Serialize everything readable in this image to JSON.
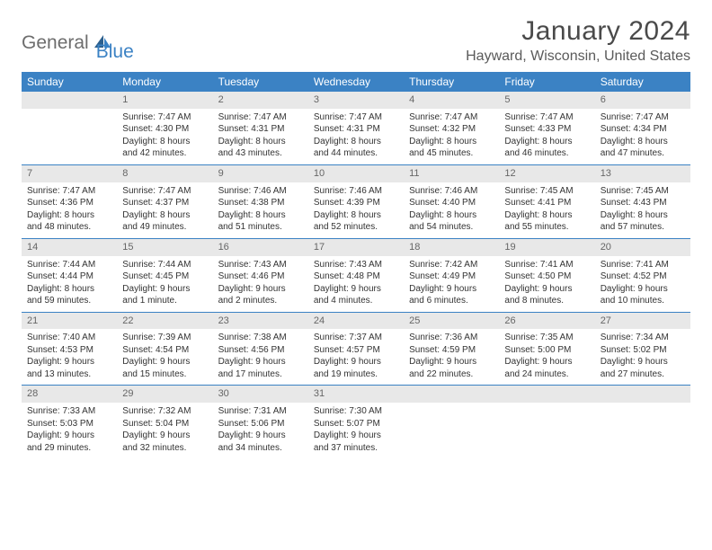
{
  "logo": {
    "text1": "General",
    "text2": "Blue"
  },
  "title": "January 2024",
  "location": "Hayward, Wisconsin, United States",
  "weekdays": [
    "Sunday",
    "Monday",
    "Tuesday",
    "Wednesday",
    "Thursday",
    "Friday",
    "Saturday"
  ],
  "colors": {
    "header_bg": "#3b82c4",
    "header_text": "#ffffff",
    "daynum_bg": "#e8e8e8",
    "week_border": "#3b82c4"
  },
  "weeks": [
    [
      null,
      {
        "n": "1",
        "sr": "Sunrise: 7:47 AM",
        "ss": "Sunset: 4:30 PM",
        "dl": "Daylight: 8 hours and 42 minutes."
      },
      {
        "n": "2",
        "sr": "Sunrise: 7:47 AM",
        "ss": "Sunset: 4:31 PM",
        "dl": "Daylight: 8 hours and 43 minutes."
      },
      {
        "n": "3",
        "sr": "Sunrise: 7:47 AM",
        "ss": "Sunset: 4:31 PM",
        "dl": "Daylight: 8 hours and 44 minutes."
      },
      {
        "n": "4",
        "sr": "Sunrise: 7:47 AM",
        "ss": "Sunset: 4:32 PM",
        "dl": "Daylight: 8 hours and 45 minutes."
      },
      {
        "n": "5",
        "sr": "Sunrise: 7:47 AM",
        "ss": "Sunset: 4:33 PM",
        "dl": "Daylight: 8 hours and 46 minutes."
      },
      {
        "n": "6",
        "sr": "Sunrise: 7:47 AM",
        "ss": "Sunset: 4:34 PM",
        "dl": "Daylight: 8 hours and 47 minutes."
      }
    ],
    [
      {
        "n": "7",
        "sr": "Sunrise: 7:47 AM",
        "ss": "Sunset: 4:36 PM",
        "dl": "Daylight: 8 hours and 48 minutes."
      },
      {
        "n": "8",
        "sr": "Sunrise: 7:47 AM",
        "ss": "Sunset: 4:37 PM",
        "dl": "Daylight: 8 hours and 49 minutes."
      },
      {
        "n": "9",
        "sr": "Sunrise: 7:46 AM",
        "ss": "Sunset: 4:38 PM",
        "dl": "Daylight: 8 hours and 51 minutes."
      },
      {
        "n": "10",
        "sr": "Sunrise: 7:46 AM",
        "ss": "Sunset: 4:39 PM",
        "dl": "Daylight: 8 hours and 52 minutes."
      },
      {
        "n": "11",
        "sr": "Sunrise: 7:46 AM",
        "ss": "Sunset: 4:40 PM",
        "dl": "Daylight: 8 hours and 54 minutes."
      },
      {
        "n": "12",
        "sr": "Sunrise: 7:45 AM",
        "ss": "Sunset: 4:41 PM",
        "dl": "Daylight: 8 hours and 55 minutes."
      },
      {
        "n": "13",
        "sr": "Sunrise: 7:45 AM",
        "ss": "Sunset: 4:43 PM",
        "dl": "Daylight: 8 hours and 57 minutes."
      }
    ],
    [
      {
        "n": "14",
        "sr": "Sunrise: 7:44 AM",
        "ss": "Sunset: 4:44 PM",
        "dl": "Daylight: 8 hours and 59 minutes."
      },
      {
        "n": "15",
        "sr": "Sunrise: 7:44 AM",
        "ss": "Sunset: 4:45 PM",
        "dl": "Daylight: 9 hours and 1 minute."
      },
      {
        "n": "16",
        "sr": "Sunrise: 7:43 AM",
        "ss": "Sunset: 4:46 PM",
        "dl": "Daylight: 9 hours and 2 minutes."
      },
      {
        "n": "17",
        "sr": "Sunrise: 7:43 AM",
        "ss": "Sunset: 4:48 PM",
        "dl": "Daylight: 9 hours and 4 minutes."
      },
      {
        "n": "18",
        "sr": "Sunrise: 7:42 AM",
        "ss": "Sunset: 4:49 PM",
        "dl": "Daylight: 9 hours and 6 minutes."
      },
      {
        "n": "19",
        "sr": "Sunrise: 7:41 AM",
        "ss": "Sunset: 4:50 PM",
        "dl": "Daylight: 9 hours and 8 minutes."
      },
      {
        "n": "20",
        "sr": "Sunrise: 7:41 AM",
        "ss": "Sunset: 4:52 PM",
        "dl": "Daylight: 9 hours and 10 minutes."
      }
    ],
    [
      {
        "n": "21",
        "sr": "Sunrise: 7:40 AM",
        "ss": "Sunset: 4:53 PM",
        "dl": "Daylight: 9 hours and 13 minutes."
      },
      {
        "n": "22",
        "sr": "Sunrise: 7:39 AM",
        "ss": "Sunset: 4:54 PM",
        "dl": "Daylight: 9 hours and 15 minutes."
      },
      {
        "n": "23",
        "sr": "Sunrise: 7:38 AM",
        "ss": "Sunset: 4:56 PM",
        "dl": "Daylight: 9 hours and 17 minutes."
      },
      {
        "n": "24",
        "sr": "Sunrise: 7:37 AM",
        "ss": "Sunset: 4:57 PM",
        "dl": "Daylight: 9 hours and 19 minutes."
      },
      {
        "n": "25",
        "sr": "Sunrise: 7:36 AM",
        "ss": "Sunset: 4:59 PM",
        "dl": "Daylight: 9 hours and 22 minutes."
      },
      {
        "n": "26",
        "sr": "Sunrise: 7:35 AM",
        "ss": "Sunset: 5:00 PM",
        "dl": "Daylight: 9 hours and 24 minutes."
      },
      {
        "n": "27",
        "sr": "Sunrise: 7:34 AM",
        "ss": "Sunset: 5:02 PM",
        "dl": "Daylight: 9 hours and 27 minutes."
      }
    ],
    [
      {
        "n": "28",
        "sr": "Sunrise: 7:33 AM",
        "ss": "Sunset: 5:03 PM",
        "dl": "Daylight: 9 hours and 29 minutes."
      },
      {
        "n": "29",
        "sr": "Sunrise: 7:32 AM",
        "ss": "Sunset: 5:04 PM",
        "dl": "Daylight: 9 hours and 32 minutes."
      },
      {
        "n": "30",
        "sr": "Sunrise: 7:31 AM",
        "ss": "Sunset: 5:06 PM",
        "dl": "Daylight: 9 hours and 34 minutes."
      },
      {
        "n": "31",
        "sr": "Sunrise: 7:30 AM",
        "ss": "Sunset: 5:07 PM",
        "dl": "Daylight: 9 hours and 37 minutes."
      },
      null,
      null,
      null
    ]
  ]
}
